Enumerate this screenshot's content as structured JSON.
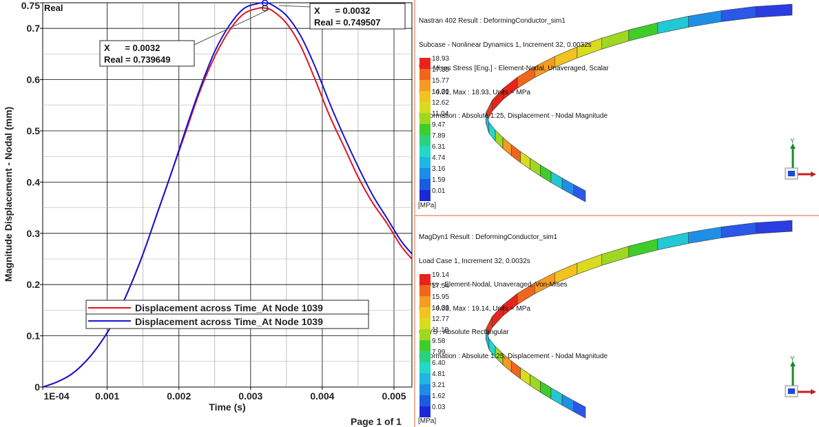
{
  "graph": {
    "corner_label": "Real",
    "page_label": "Page 1 of 1",
    "y_axis_label": "Magnitude Displacement - Nodal (mm)",
    "x_axis_label": "Time (s)",
    "x_ticks": [
      "1E-04",
      "0.001",
      "0.002",
      "0.003",
      "0.004",
      "0.005"
    ],
    "y_ticks": [
      "0",
      "0.1",
      "0.2",
      "0.3",
      "0.4",
      "0.5",
      "0.6",
      "0.7",
      "0.75"
    ],
    "legend": [
      {
        "label": "Displacement across Time_At Node 1039",
        "color": "#e0141e"
      },
      {
        "label": "Displacement across Time_At Node 1039",
        "color": "#1414d2"
      }
    ],
    "tooltip_red": {
      "x_line": "X      = 0.0032",
      "y_line": "Real = 0.739649"
    },
    "tooltip_blue": {
      "x_line": "X      = 0.0032",
      "y_line": "Real = 0.749507"
    }
  },
  "chart_data": {
    "type": "line",
    "xlabel": "Time (s)",
    "ylabel": "Magnitude Displacement - Nodal (mm)",
    "xlim": [
      0.0001,
      0.00525
    ],
    "ylim": [
      0,
      0.75
    ],
    "grid": true,
    "legend_position": "bottom-left",
    "series": [
      {
        "name": "Displacement across Time_At Node 1039",
        "color": "#e0141e",
        "x": [
          0.0001,
          0.0003,
          0.0005,
          0.0007,
          0.0009,
          0.0011,
          0.0013,
          0.0015,
          0.0017,
          0.0019,
          0.0021,
          0.0023,
          0.0025,
          0.0027,
          0.0029,
          0.0031,
          0.0032,
          0.0033,
          0.0035,
          0.0037,
          0.0039,
          0.0041,
          0.0043,
          0.0045,
          0.0047,
          0.0049,
          0.0051,
          0.00525
        ],
        "y": [
          0.0,
          0.01,
          0.025,
          0.05,
          0.085,
          0.13,
          0.19,
          0.26,
          0.34,
          0.42,
          0.5,
          0.58,
          0.645,
          0.695,
          0.728,
          0.739,
          0.7396,
          0.735,
          0.71,
          0.665,
          0.6,
          0.53,
          0.47,
          0.41,
          0.36,
          0.32,
          0.275,
          0.25
        ]
      },
      {
        "name": "Displacement across Time_At Node 1039",
        "color": "#1414d2",
        "x": [
          0.0001,
          0.0003,
          0.0005,
          0.0007,
          0.0009,
          0.0011,
          0.0013,
          0.0015,
          0.0017,
          0.0019,
          0.0021,
          0.0023,
          0.0025,
          0.0027,
          0.0029,
          0.0031,
          0.0032,
          0.0033,
          0.0035,
          0.0037,
          0.0039,
          0.0041,
          0.0043,
          0.0045,
          0.0047,
          0.0049,
          0.0051,
          0.00525
        ],
        "y": [
          0.0,
          0.01,
          0.025,
          0.05,
          0.085,
          0.13,
          0.19,
          0.26,
          0.34,
          0.42,
          0.505,
          0.585,
          0.655,
          0.705,
          0.738,
          0.7485,
          0.7495,
          0.746,
          0.725,
          0.685,
          0.625,
          0.555,
          0.49,
          0.43,
          0.375,
          0.33,
          0.285,
          0.26
        ]
      }
    ]
  },
  "top_view": {
    "header": [
      "Nastran 402 Result : DeformingConductor_sim1",
      "Subcase - Nonlinear Dynamics 1, Increment 32, 0.0032s",
      "Von-Mises Stress [Eng.] - Element-Nodal, Unaveraged, Scalar",
      "Min : 0.01, Max : 18.93, Units = MPa",
      "Deformation : Absolute 1:25, Displacement - Nodal Magnitude"
    ],
    "scale": [
      "18.93",
      "17.35",
      "15.77",
      "14.20",
      "12.62",
      "11.04",
      "9.47",
      "7.89",
      "6.31",
      "4.74",
      "3.16",
      "1.59",
      "0.01"
    ],
    "unit": "[MPa]",
    "triad_axis": "Y"
  },
  "bottom_view": {
    "header": [
      "MagDyn1 Result : DeformingConductor_sim1",
      "Load Case 1, Increment 32, 0.0032s",
      "Stress - Element-Nodal, Unaveraged, Von-Mises",
      "Min : 0.03, Max : 19.14, Units = MPa",
      "CSYS : Absolute Rectangular",
      "Deformation : Absolute 1:25, Displacement - Nodal Magnitude"
    ],
    "scale": [
      "19.14",
      "17.54",
      "15.95",
      "14.36",
      "12.77",
      "11.18",
      "9.58",
      "7.99",
      "6.40",
      "4.81",
      "3.21",
      "1.62",
      "0.03"
    ],
    "unit": "[MPa]",
    "triad_axis": "Y"
  },
  "colors": {
    "scale_top_to_bottom": [
      "#e8231c",
      "#f0661c",
      "#f59a22",
      "#f2c21e",
      "#d9dc1e",
      "#9fd821",
      "#3fcd2a",
      "#2bd27d",
      "#22d8c8",
      "#1fb6e6",
      "#1d8ce6",
      "#1c5ae0",
      "#1c28d8"
    ],
    "separator": "#e8b39a"
  }
}
